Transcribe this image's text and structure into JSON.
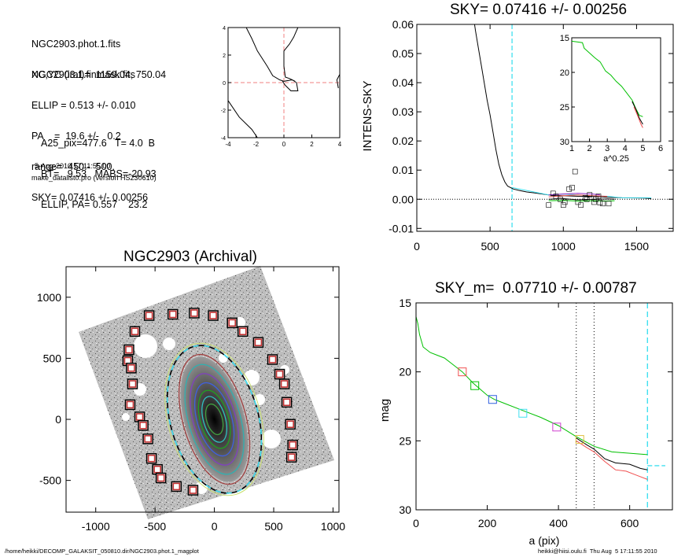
{
  "info": {
    "lines1": [
      "NGC2903.phot.1.fits",
      "NGC2903.1.finmask.fits"
    ],
    "lines2": [
      "XC,YC (iraf)=  1159.04, 750.04",
      "ELLIP = 0.513 +/- 0.010",
      "PA    =  19.6 +/-   0.2",
      "range=  450.-  500.",
      "SKY= 0.07416 +/- 0.00256"
    ],
    "lines3": [
      "A25_pix=477.6   T= 4.0  B",
      "BT=   9.53   MABS=-20.93",
      "ELLIP, PA= 0.557    23.2"
    ],
    "date": "5-Aug-2010 17:11:55.00",
    "program": "make_datalist0.pro (version HS230610)"
  },
  "footer": {
    "left": "/home/heikki/DECOMP_GALAKSIT_050810.dir/NGC2903.phot.1_magplot",
    "right": "heikki@hiisi.oulu.fi  Thu Aug  5 17:11:55 2010"
  },
  "chart_data": [
    {
      "id": "center-plot",
      "type": "line",
      "xlim": [
        -4,
        4
      ],
      "ylim": [
        -4,
        4
      ],
      "xticks": [
        "-4",
        "-2",
        "0",
        "2",
        "4"
      ],
      "yticks": [
        "4",
        "2",
        "0",
        "-2",
        "-4"
      ],
      "series": [
        {
          "points": [
            [
              -2.7,
              4
            ],
            [
              -2.3,
              3.2
            ],
            [
              -1.9,
              2.3
            ],
            [
              -1.2,
              1.2
            ],
            [
              -0.8,
              0.5
            ],
            [
              -0.3,
              0.2
            ],
            [
              0,
              0.1
            ],
            [
              0.6,
              0.2
            ],
            [
              0.9,
              0
            ]
          ]
        },
        {
          "points": [
            [
              1.0,
              4
            ],
            [
              0.7,
              3.3
            ],
            [
              0.4,
              2.8
            ],
            [
              0,
              2.3
            ],
            [
              0,
              1.2
            ],
            [
              0.1,
              0.4
            ],
            [
              0.4,
              0.3
            ],
            [
              0.8,
              0.1
            ]
          ]
        },
        {
          "points": [
            [
              -0.1,
              0.1
            ],
            [
              0.1,
              -0.2
            ],
            [
              0.5,
              -0.6
            ],
            [
              1.0,
              -0.6
            ],
            [
              0.9,
              0
            ]
          ]
        },
        {
          "points": [
            [
              -4,
              -1.3
            ],
            [
              -3.2,
              -2.5
            ],
            [
              -2.3,
              -3.4
            ],
            [
              -1.9,
              -4
            ]
          ]
        },
        {
          "points": [
            [
              4,
              0.6
            ],
            [
              3.8,
              0.2
            ],
            [
              3.9,
              -0.4
            ]
          ]
        }
      ],
      "crosshair": {
        "x": 0,
        "y": 0,
        "color": "#f08080"
      }
    },
    {
      "id": "sky-plot",
      "type": "line",
      "title": "SKY= 0.07416 +/- 0.00256",
      "ylabel": "INTENS-SKY",
      "xlim": [
        0,
        1750
      ],
      "ylim": [
        -0.011,
        0.06
      ],
      "xticks": [
        0,
        500,
        1000,
        1500
      ],
      "yticks": [
        "0.06",
        "0.05",
        "0.04",
        "0.03",
        "0.02",
        "0.01",
        "0.00",
        "-0.01"
      ],
      "ytick_values": [
        0.06,
        0.05,
        0.04,
        0.03,
        0.02,
        0.01,
        0.0,
        -0.01
      ],
      "vline": {
        "x": 650,
        "color": "#40e0f0"
      },
      "series": [
        {
          "color": "#000000",
          "points": [
            [
              380,
              0.065
            ],
            [
              400,
              0.058
            ],
            [
              420,
              0.052
            ],
            [
              440,
              0.046
            ],
            [
              460,
              0.04
            ],
            [
              480,
              0.034
            ],
            [
              500,
              0.029
            ],
            [
              520,
              0.023
            ],
            [
              540,
              0.017
            ],
            [
              560,
              0.012
            ],
            [
              580,
              0.0085
            ],
            [
              600,
              0.006
            ],
            [
              620,
              0.0045
            ],
            [
              640,
              0.004
            ],
            [
              660,
              0.0035
            ],
            [
              700,
              0.003
            ],
            [
              750,
              0.0025
            ],
            [
              800,
              0.0022
            ],
            [
              900,
              0.0015
            ],
            [
              1000,
              0.0012
            ],
            [
              1100,
              0.001
            ],
            [
              1200,
              0.001
            ],
            [
              1300,
              0.0007
            ],
            [
              1400,
              0.0005
            ],
            [
              1550,
              0.0004
            ],
            [
              1600,
              0.0002
            ]
          ]
        },
        {
          "color": "#40e0f0",
          "points": [
            [
              650,
              0.004
            ],
            [
              700,
              0.0035
            ],
            [
              800,
              0.0025
            ],
            [
              900,
              0.0015
            ],
            [
              1000,
              0.0018
            ],
            [
              1100,
              0.0015
            ],
            [
              1200,
              0.0012
            ],
            [
              1300,
              0.001
            ],
            [
              1400,
              0.0005
            ],
            [
              1500,
              0.0005
            ],
            [
              1600,
              0.0005
            ]
          ]
        },
        {
          "color": "#00c000",
          "points": [
            [
              900,
              -0.0005
            ],
            [
              1000,
              -0.0004
            ],
            [
              1100,
              -0.0006
            ],
            [
              1200,
              -0.0005
            ],
            [
              1300,
              -0.0006
            ],
            [
              1350,
              -0.0005
            ]
          ]
        },
        {
          "color": "#9020c0",
          "points": [
            [
              900,
              0.0015
            ],
            [
              1000,
              0.0018
            ],
            [
              1100,
              0.002
            ],
            [
              1200,
              0.0018
            ],
            [
              1250,
              0.0015
            ]
          ]
        },
        {
          "color": "#f05050",
          "points": [
            [
              900,
              0.0008
            ],
            [
              1000,
              0.0012
            ],
            [
              1100,
              0.0015
            ],
            [
              1200,
              0.0012
            ],
            [
              1300,
              0.001
            ]
          ]
        },
        {
          "color": "#000000",
          "points": [
            [
              900,
              0.0
            ],
            [
              1000,
              0.0002
            ],
            [
              1100,
              -0.0002
            ],
            [
              1200,
              0.0
            ],
            [
              1300,
              0.0001
            ],
            [
              1350,
              0.0
            ]
          ]
        }
      ],
      "markers": [
        [
          1080,
          0.0095
        ],
        [
          1060,
          0.004
        ],
        [
          1040,
          0.0035
        ],
        [
          930,
          0.002
        ],
        [
          950,
          0.001
        ],
        [
          980,
          0.0
        ],
        [
          1010,
          -0.001
        ],
        [
          1100,
          -0.001
        ],
        [
          1180,
          0.0015
        ],
        [
          1210,
          -0.001
        ],
        [
          1240,
          0.001
        ],
        [
          1270,
          -0.0015
        ],
        [
          1310,
          -0.0015
        ],
        [
          1220,
          0.0
        ],
        [
          1150,
          0.0005
        ],
        [
          900,
          -0.002
        ],
        [
          1000,
          -0.002
        ],
        [
          1120,
          -0.002
        ],
        [
          1160,
          0.0
        ],
        [
          1250,
          -0.0012
        ]
      ],
      "inset": {
        "xlabel": "a^0.25",
        "xlim": [
          1,
          6
        ],
        "ylim": [
          15,
          30
        ],
        "xticks": [
          1,
          2,
          3,
          4,
          5,
          6
        ],
        "yticks": [
          15,
          20,
          25,
          30
        ],
        "series": [
          {
            "color": "#00c000",
            "points": [
              [
                1.0,
                15.5
              ],
              [
                1.3,
                15.6
              ],
              [
                1.6,
                15.7
              ],
              [
                1.7,
                16.5
              ],
              [
                2.0,
                17.2
              ],
              [
                2.3,
                17.9
              ],
              [
                2.6,
                18.5
              ],
              [
                2.9,
                19.8
              ],
              [
                3.2,
                20.4
              ],
              [
                3.5,
                21.3
              ],
              [
                3.8,
                22.0
              ],
              [
                4.1,
                23.0
              ],
              [
                4.4,
                24.0
              ],
              [
                4.6,
                25.2
              ],
              [
                4.8,
                26.2
              ],
              [
                5.0,
                26.4
              ]
            ]
          },
          {
            "color": "#000000",
            "points": [
              [
                4.4,
                24.2
              ],
              [
                4.6,
                25.3
              ],
              [
                4.8,
                26.6
              ],
              [
                5.0,
                27.5
              ]
            ]
          },
          {
            "color": "#f05050",
            "points": [
              [
                4.5,
                25.0
              ],
              [
                4.7,
                26.2
              ],
              [
                4.9,
                27.5
              ],
              [
                5.0,
                28.0
              ]
            ]
          }
        ]
      }
    },
    {
      "id": "image-plot",
      "type": "scatter",
      "title": "NGC2903 (Archival)",
      "xlim": [
        -1250,
        1050
      ],
      "ylim": [
        -760,
        1250
      ],
      "xticks": [
        -1000,
        -500,
        0,
        500,
        1000
      ],
      "yticks": [
        1000,
        500,
        0,
        -500
      ],
      "ellipse": {
        "cx": 0,
        "cy": 0,
        "a": 620,
        "b": 370,
        "pa_deg": 16
      },
      "markers": [
        [
          -550,
          850
        ],
        [
          -350,
          860
        ],
        [
          -170,
          870
        ],
        [
          -10,
          850
        ],
        [
          150,
          790
        ],
        [
          240,
          720
        ],
        [
          370,
          630
        ],
        [
          490,
          490
        ],
        [
          550,
          370
        ],
        [
          590,
          290
        ],
        [
          610,
          140
        ],
        [
          640,
          -40
        ],
        [
          660,
          -210
        ],
        [
          650,
          -310
        ],
        [
          -670,
          720
        ],
        [
          -720,
          570
        ],
        [
          -730,
          480
        ],
        [
          -700,
          420
        ],
        [
          -690,
          290
        ],
        [
          -710,
          120
        ],
        [
          -630,
          20
        ],
        [
          -600,
          -50
        ],
        [
          -560,
          -160
        ],
        [
          -530,
          -320
        ],
        [
          -480,
          -410
        ],
        [
          -450,
          -480
        ],
        [
          -320,
          -550
        ],
        [
          -180,
          -580
        ]
      ]
    },
    {
      "id": "profile-plot",
      "type": "line",
      "title": "SKY_m=  0.07710 +/- 0.00787",
      "xlabel": "a (pix)",
      "ylabel": "mag",
      "xlim": [
        0,
        720
      ],
      "ylim": [
        15,
        30
      ],
      "xticks": [
        0,
        200,
        400,
        600
      ],
      "yticks": [
        15,
        20,
        25,
        30
      ],
      "vlines": [
        {
          "x": 450,
          "color": "#000000"
        },
        {
          "x": 500,
          "color": "#000000"
        },
        {
          "x": 650,
          "color": "#40e0f0"
        }
      ],
      "hline": {
        "x0": 650,
        "x1": 700,
        "y": 26.8,
        "color": "#40e0f0"
      },
      "series": [
        {
          "color": "#00c000",
          "points": [
            [
              0,
              16.0
            ],
            [
              5,
              16.5
            ],
            [
              10,
              17.3
            ],
            [
              20,
              18.2
            ],
            [
              40,
              18.6
            ],
            [
              60,
              18.8
            ],
            [
              80,
              19.0
            ],
            [
              100,
              19.4
            ],
            [
              130,
              20.0
            ],
            [
              160,
              20.8
            ],
            [
              200,
              21.7
            ],
            [
              220,
              22.0
            ],
            [
              250,
              22.3
            ],
            [
              300,
              22.8
            ],
            [
              350,
              23.3
            ],
            [
              400,
              23.9
            ],
            [
              450,
              24.7
            ],
            [
              500,
              25.4
            ],
            [
              550,
              25.8
            ],
            [
              600,
              25.9
            ],
            [
              650,
              26.0
            ]
          ]
        },
        {
          "color": "#000000",
          "points": [
            [
              450,
              24.8
            ],
            [
              480,
              25.3
            ],
            [
              500,
              25.6
            ],
            [
              530,
              26.3
            ],
            [
              560,
              26.6
            ],
            [
              600,
              26.7
            ],
            [
              630,
              27.0
            ],
            [
              650,
              27.1
            ]
          ]
        },
        {
          "color": "#f05050",
          "points": [
            [
              450,
              25.0
            ],
            [
              480,
              25.5
            ],
            [
              500,
              25.8
            ],
            [
              530,
              26.5
            ],
            [
              560,
              27.1
            ],
            [
              590,
              27.2
            ],
            [
              620,
              27.5
            ],
            [
              650,
              27.8
            ]
          ]
        }
      ],
      "markers": [
        {
          "x": 130,
          "y": 20.0,
          "color": "#f05050"
        },
        {
          "x": 165,
          "y": 21.0,
          "color": "#00c000"
        },
        {
          "x": 215,
          "y": 22.0,
          "color": "#3060e0"
        },
        {
          "x": 300,
          "y": 23.0,
          "color": "#40e0f0"
        },
        {
          "x": 395,
          "y": 24.0,
          "color": "#d040d0"
        },
        {
          "x": 460,
          "y": 24.9,
          "color": "#e0c040"
        }
      ]
    }
  ]
}
